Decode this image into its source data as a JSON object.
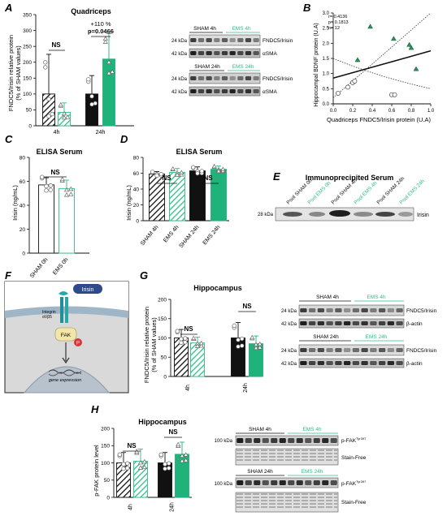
{
  "colors": {
    "sham": "#111111",
    "ems": "#1fb27a",
    "ems_hatch": "#2fbf86",
    "blot_dark": "#2a2a2a",
    "blot_mid": "#6b6b6b",
    "ems_label": "#2fbf86"
  },
  "panels": {
    "A": {
      "letter": "A",
      "title": "Quadriceps",
      "ylabel": "FNDC5/Irisin relative protein",
      "ylabel2": "(% of SHAM values)",
      "yticks": [
        "0",
        "50",
        "100",
        "150",
        "200",
        "250",
        "300",
        "350"
      ],
      "xticks": [
        "4h",
        "24h"
      ],
      "ns": "NS",
      "stat1": "+110 %",
      "stat2": "p=0.0466",
      "blot": {
        "sham4": "SHAM 4h",
        "ems4": "EMS 4h",
        "sham24": "SHAM 24h",
        "ems24": "EMS 24h",
        "kda24a": "24 kDa",
        "kda42a": "42 kDa",
        "kda24b": "24 kDa",
        "kda42b": "42 kDa",
        "labA": "FNDC5/Irisin",
        "labB": "αSMA",
        "labC": "FNDC5/Irisin",
        "labD": "αSMA"
      }
    },
    "B": {
      "letter": "B",
      "ylabel": "Hippocampal BDNF protein (U.A)",
      "xlabel": "Quadriceps FNDC5/Irisin protein (U.A)",
      "yticks": [
        "0.0",
        "0.5",
        "1.0",
        "1.5",
        "2.0",
        "2.5",
        "3.0"
      ],
      "xticks": [
        "0.0",
        "0.2",
        "0.4",
        "0.6",
        "0.8",
        "1.0"
      ],
      "stats": [
        "r= 0.4136",
        "p= 0.1813",
        "n= 12"
      ]
    },
    "C": {
      "letter": "C",
      "title": "ELISA Serum",
      "ylabel": "Irisin (ng/mL)",
      "yticks": [
        "0",
        "20",
        "40",
        "60",
        "80"
      ],
      "xticks": [
        "SHAM 0h",
        "EMS 0h"
      ],
      "ns": "NS"
    },
    "D": {
      "letter": "D",
      "title": "ELISA Serum",
      "ylabel": "Irisin (ng/mL)",
      "yticks": [
        "0",
        "20",
        "40",
        "60",
        "80"
      ],
      "xticks": [
        "SHAM 4h",
        "EMS 4h",
        "SHAM 24h",
        "EMS 24h"
      ],
      "ns1": "NS",
      "ns2": "NS"
    },
    "E": {
      "letter": "E",
      "title": "Immunoprecipited  Serum",
      "kda": "28 kDa",
      "band": "Irisin",
      "lanes": [
        "Pool SHAM 0h",
        "Pool EMS 0h",
        "Pool SHAM 4h",
        "Pool EMS 4h",
        "Pool SHAM 24h",
        "Pool EMS 24h"
      ]
    },
    "F": {
      "letter": "F",
      "irisin": "Irisin",
      "integrin": "Integrin",
      "integrin2": "αVβ5",
      "fak": "FAK",
      "p": "P",
      "gene": "gene expression"
    },
    "G": {
      "letter": "G",
      "title": "Hippocampus",
      "ylabel": "FNDC5/Irisin relative protein",
      "ylabel2": "(% of SHAM values)",
      "yticks": [
        "0",
        "50",
        "100",
        "150",
        "200"
      ],
      "xticks": [
        "4h",
        "24h"
      ],
      "ns1": "NS",
      "ns2": "NS",
      "blot": {
        "sham4": "SHAM 4h",
        "ems4": "EMS 4h",
        "sham24": "SHAM 24h",
        "ems24": "EMS 24h",
        "kda24a": "24 kDa",
        "kda42a": "42 kDa",
        "kda24b": "24 kDa",
        "kda42b": "42 kDa",
        "labA": "FNDC5/Irisin",
        "labB": "β-actin",
        "labC": "FNDC5/Irisin",
        "labD": "β-actin"
      }
    },
    "H": {
      "letter": "H",
      "title": "Hippocampus",
      "ylabel": "p-FAK protein level",
      "yticks": [
        "0",
        "50",
        "100",
        "150",
        "200"
      ],
      "xticks": [
        "4h",
        "24h"
      ],
      "ns1": "NS",
      "ns2": "NS",
      "blot": {
        "sham4": "SHAM 4h",
        "ems4": "EMS 4h",
        "sham24": "SHAM 24h",
        "ems24": "EMS 24h",
        "kda1": "100 kDa",
        "kda2": "100 kDa",
        "labA": "p-FAK",
        "labA_sup": "Tyr397",
        "labB": "Stain-Free",
        "labC": "p-FAK",
        "labC_sup": "Tyr397",
        "labD": "Stain-Free"
      }
    }
  },
  "chart_data": [
    {
      "panel": "A",
      "type": "bar",
      "categories": [
        "4h",
        "24h"
      ],
      "ylim": [
        0,
        350
      ],
      "series": [
        {
          "name": "SHAM",
          "values": [
            100,
            100
          ]
        },
        {
          "name": "EMS",
          "values": [
            42,
            210
          ]
        }
      ],
      "errors": {
        "SHAM": [
          125,
          58
        ],
        "EMS": [
          30,
          80
        ]
      }
    },
    {
      "panel": "B",
      "type": "scatter",
      "xlim": [
        0,
        1.0
      ],
      "ylim": [
        0,
        3.0
      ],
      "series": [
        {
          "name": "SHAM",
          "points": [
            [
              0.05,
              0.35
            ],
            [
              0.15,
              0.55
            ],
            [
              0.2,
              0.7
            ],
            [
              0.22,
              0.75
            ],
            [
              0.6,
              0.3
            ],
            [
              0.63,
              0.3
            ]
          ]
        },
        {
          "name": "EMS",
          "points": [
            [
              0.25,
              1.45
            ],
            [
              0.38,
              2.55
            ],
            [
              0.62,
              2.15
            ],
            [
              0.78,
              1.95
            ],
            [
              0.8,
              1.85
            ],
            [
              0.85,
              1.15
            ]
          ]
        }
      ],
      "fit": [
        [
          0.0,
          0.85
        ],
        [
          1.0,
          1.75
        ]
      ]
    },
    {
      "panel": "C",
      "type": "bar",
      "categories": [
        "SHAM 0h",
        "EMS 0h"
      ],
      "ylim": [
        0,
        80
      ],
      "values": [
        57,
        54
      ],
      "errors": [
        6,
        7
      ]
    },
    {
      "panel": "D",
      "type": "bar",
      "categories": [
        "SHAM 4h",
        "EMS 4h",
        "SHAM 24h",
        "EMS 24h"
      ],
      "ylim": [
        0,
        80
      ],
      "values": [
        59,
        61,
        63,
        65
      ],
      "errors": [
        3,
        5,
        5,
        4
      ]
    },
    {
      "panel": "G",
      "type": "bar",
      "categories": [
        "4h",
        "24h"
      ],
      "ylim": [
        0,
        200
      ],
      "series": [
        {
          "name": "SHAM",
          "values": [
            100,
            100
          ]
        },
        {
          "name": "EMS",
          "values": [
            87,
            85
          ]
        }
      ],
      "errors": {
        "SHAM": [
          22,
          40
        ],
        "EMS": [
          15,
          20
        ]
      }
    },
    {
      "panel": "H",
      "type": "bar",
      "categories": [
        "4h",
        "24h"
      ],
      "ylim": [
        0,
        200
      ],
      "series": [
        {
          "name": "SHAM",
          "values": [
            100,
            100
          ]
        },
        {
          "name": "EMS",
          "values": [
            105,
            125
          ]
        }
      ],
      "errors": {
        "SHAM": [
          30,
          30
        ],
        "EMS": [
          35,
          35
        ]
      }
    }
  ]
}
